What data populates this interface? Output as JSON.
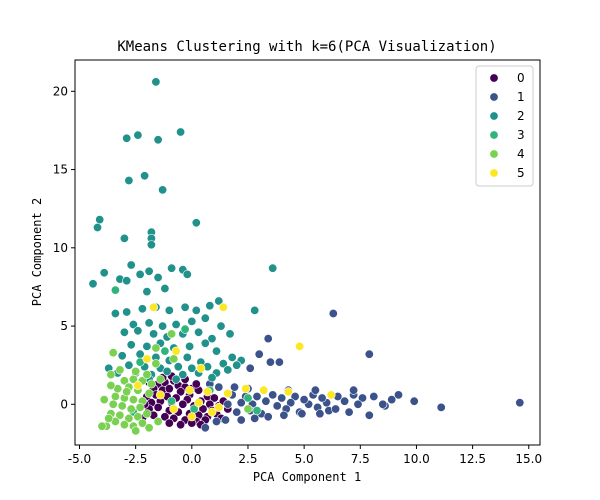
{
  "chart_data": {
    "type": "scatter",
    "title": "KMeans Clustering with k=6(PCA Visualization)",
    "xlabel": "PCA Component 1",
    "ylabel": "PCA Component 2",
    "xlim": [
      -5.2,
      15.5
    ],
    "ylim": [
      -2.6,
      22.0
    ],
    "xticks": [
      -5.0,
      -2.5,
      0.0,
      2.5,
      5.0,
      7.5,
      10.0,
      12.5,
      15.0
    ],
    "xtick_labels": [
      "-5.0",
      "-2.5",
      "0.0",
      "2.5",
      "5.0",
      "7.5",
      "10.0",
      "12.5",
      "15.0"
    ],
    "yticks": [
      0,
      5,
      10,
      15,
      20
    ],
    "ytick_labels": [
      "0",
      "5",
      "10",
      "15",
      "20"
    ],
    "grid": false,
    "legend_position": "top-right",
    "series": [
      {
        "name": "0",
        "color": "#440154",
        "points": [
          [
            -1.9,
            1.4
          ],
          [
            -1.5,
            1.3
          ],
          [
            -1.2,
            1.4
          ],
          [
            -0.8,
            1.5
          ],
          [
            -0.6,
            1.2
          ],
          [
            -0.3,
            1.1
          ],
          [
            0.0,
            1.0
          ],
          [
            -1.7,
            1.0
          ],
          [
            -1.3,
            0.9
          ],
          [
            -1.0,
            1.0
          ],
          [
            -0.5,
            0.8
          ],
          [
            -0.1,
            0.6
          ],
          [
            0.3,
            0.9
          ],
          [
            0.7,
            0.5
          ],
          [
            1.0,
            0.4
          ],
          [
            -2.0,
            0.5
          ],
          [
            -1.6,
            0.6
          ],
          [
            -1.1,
            0.5
          ],
          [
            -0.7,
            0.4
          ],
          [
            -0.2,
            0.3
          ],
          [
            0.4,
            0.2
          ],
          [
            0.8,
            0.0
          ],
          [
            1.2,
            -0.1
          ],
          [
            -1.8,
            0.1
          ],
          [
            -1.4,
            0.2
          ],
          [
            -0.9,
            0.1
          ],
          [
            -0.4,
            0.0
          ],
          [
            0.1,
            -0.1
          ],
          [
            0.5,
            -0.3
          ],
          [
            0.9,
            -0.4
          ],
          [
            -1.9,
            -0.3
          ],
          [
            -1.5,
            -0.2
          ],
          [
            -1.0,
            -0.4
          ],
          [
            -0.6,
            -0.5
          ],
          [
            -0.1,
            -0.6
          ],
          [
            0.3,
            -0.7
          ],
          [
            0.7,
            -0.8
          ],
          [
            1.1,
            -0.6
          ],
          [
            -1.7,
            -0.7
          ],
          [
            -1.2,
            -0.8
          ],
          [
            -0.8,
            -0.9
          ],
          [
            -0.3,
            -1.0
          ],
          [
            0.2,
            -1.1
          ],
          [
            0.6,
            -1.0
          ],
          [
            -1.5,
            -1.1
          ],
          [
            -1.0,
            -1.2
          ],
          [
            -0.5,
            -1.3
          ],
          [
            0.0,
            -1.2
          ],
          [
            0.4,
            -1.3
          ],
          [
            -2.2,
            -0.9
          ],
          [
            -2.1,
            0.0
          ],
          [
            1.4,
            0.2
          ],
          [
            1.6,
            -0.3
          ],
          [
            1.3,
            -0.9
          ],
          [
            -0.9,
            1.8
          ],
          [
            -0.3,
            1.6
          ],
          [
            0.2,
            1.3
          ],
          [
            -1.3,
            1.7
          ]
        ]
      },
      {
        "name": "1",
        "color": "#3b528b",
        "points": [
          [
            14.6,
            0.1
          ],
          [
            11.1,
            -0.2
          ],
          [
            9.9,
            0.2
          ],
          [
            9.2,
            0.6
          ],
          [
            8.9,
            0.3
          ],
          [
            8.6,
            -0.1
          ],
          [
            8.5,
            0.0
          ],
          [
            8.1,
            0.5
          ],
          [
            7.9,
            3.2
          ],
          [
            7.9,
            -0.7
          ],
          [
            7.6,
            0.4
          ],
          [
            7.4,
            0.0
          ],
          [
            7.2,
            0.6
          ],
          [
            7.0,
            -0.5
          ],
          [
            6.8,
            0.2
          ],
          [
            6.5,
            0.5
          ],
          [
            6.3,
            5.8
          ],
          [
            6.1,
            -0.4
          ],
          [
            6.0,
            0.1
          ],
          [
            5.8,
            0.4
          ],
          [
            5.6,
            -0.2
          ],
          [
            5.4,
            0.6
          ],
          [
            5.2,
            0.0
          ],
          [
            5.0,
            0.3
          ],
          [
            4.8,
            -0.5
          ],
          [
            4.6,
            0.5
          ],
          [
            4.4,
            0.1
          ],
          [
            4.2,
            -0.3
          ],
          [
            4.0,
            0.4
          ],
          [
            3.8,
            -0.1
          ],
          [
            3.6,
            0.6
          ],
          [
            3.5,
            2.7
          ],
          [
            3.4,
            4.2
          ],
          [
            3.3,
            0.2
          ],
          [
            3.1,
            -0.6
          ],
          [
            3.0,
            3.2
          ],
          [
            2.9,
            0.5
          ],
          [
            2.7,
            0.0
          ],
          [
            2.6,
            -0.4
          ],
          [
            2.4,
            0.5
          ],
          [
            2.2,
            0.1
          ],
          [
            2.0,
            -0.5
          ],
          [
            1.8,
            0.6
          ],
          [
            1.6,
            0.0
          ],
          [
            1.5,
            -1.0
          ],
          [
            2.2,
            -1.0
          ],
          [
            2.8,
            -0.9
          ],
          [
            3.4,
            -0.8
          ],
          [
            4.1,
            -0.7
          ],
          [
            4.9,
            -0.6
          ],
          [
            5.7,
            -0.6
          ],
          [
            6.4,
            -0.3
          ],
          [
            7.2,
            0.9
          ],
          [
            5.5,
            0.9
          ],
          [
            4.3,
            0.9
          ],
          [
            3.2,
            0.9
          ],
          [
            2.5,
            1.0
          ],
          [
            1.9,
            1.1
          ],
          [
            1.2,
            1.1
          ],
          [
            0.8,
            1.3
          ],
          [
            3.9,
            2.7
          ],
          [
            2.6,
            2.3
          ],
          [
            1.1,
            -1.1
          ],
          [
            0.6,
            -1.5
          ]
        ]
      },
      {
        "name": "2",
        "color": "#21918c",
        "points": [
          [
            -1.6,
            20.6
          ],
          [
            -2.9,
            17.0
          ],
          [
            -2.4,
            17.2
          ],
          [
            -1.5,
            16.9
          ],
          [
            -0.5,
            17.4
          ],
          [
            -2.1,
            14.6
          ],
          [
            -2.8,
            14.3
          ],
          [
            -1.3,
            13.7
          ],
          [
            -4.1,
            11.8
          ],
          [
            -4.2,
            11.3
          ],
          [
            -1.8,
            11.0
          ],
          [
            -1.8,
            10.6
          ],
          [
            -1.8,
            10.2
          ],
          [
            -3.0,
            10.6
          ],
          [
            0.2,
            11.6
          ],
          [
            -4.4,
            7.7
          ],
          [
            -3.9,
            8.4
          ],
          [
            -3.2,
            8.0
          ],
          [
            -2.7,
            8.9
          ],
          [
            -2.3,
            8.3
          ],
          [
            -1.9,
            8.5
          ],
          [
            -1.5,
            8.1
          ],
          [
            -0.9,
            8.7
          ],
          [
            -0.4,
            8.6
          ],
          [
            -0.2,
            8.3
          ],
          [
            -2.9,
            7.9
          ],
          [
            -2.0,
            7.2
          ],
          [
            -1.2,
            7.4
          ],
          [
            3.6,
            8.7
          ],
          [
            -3.4,
            5.8
          ],
          [
            -2.9,
            5.9
          ],
          [
            -2.2,
            6.1
          ],
          [
            -1.6,
            6.2
          ],
          [
            -1.0,
            6.0
          ],
          [
            -0.3,
            6.2
          ],
          [
            0.2,
            6.0
          ],
          [
            0.8,
            6.3
          ],
          [
            1.2,
            6.6
          ],
          [
            2.8,
            6.0
          ],
          [
            -2.6,
            5.1
          ],
          [
            -1.9,
            5.2
          ],
          [
            -1.3,
            5.0
          ],
          [
            -0.7,
            5.1
          ],
          [
            0.0,
            5.3
          ],
          [
            0.6,
            5.5
          ],
          [
            1.3,
            5.0
          ],
          [
            -3.0,
            4.6
          ],
          [
            -2.4,
            4.7
          ],
          [
            -1.7,
            4.5
          ],
          [
            -1.1,
            4.3
          ],
          [
            -0.4,
            4.5
          ],
          [
            0.3,
            4.6
          ],
          [
            0.9,
            4.2
          ],
          [
            1.7,
            4.5
          ],
          [
            -2.7,
            3.8
          ],
          [
            -2.0,
            3.7
          ],
          [
            -1.4,
            3.9
          ],
          [
            -0.8,
            3.6
          ],
          [
            -0.1,
            3.7
          ],
          [
            0.6,
            3.9
          ],
          [
            1.1,
            3.4
          ],
          [
            1.8,
            3.0
          ],
          [
            2.2,
            2.8
          ],
          [
            -3.1,
            3.1
          ],
          [
            -2.3,
            3.2
          ],
          [
            -1.6,
            3.0
          ],
          [
            -1.0,
            2.8
          ],
          [
            -0.2,
            3.0
          ],
          [
            0.4,
            2.7
          ],
          [
            1.4,
            2.6
          ],
          [
            -2.8,
            2.5
          ],
          [
            -2.1,
            2.4
          ],
          [
            -1.4,
            2.3
          ],
          [
            -0.6,
            2.4
          ],
          [
            0.0,
            2.3
          ],
          [
            0.7,
            2.4
          ],
          [
            1.6,
            2.2
          ],
          [
            -3.3,
            2.0
          ],
          [
            -2.5,
            2.0
          ],
          [
            -1.8,
            1.9
          ],
          [
            -1.1,
            2.1
          ],
          [
            -0.4,
            1.9
          ],
          [
            0.3,
            2.0
          ],
          [
            1.1,
            2.0
          ],
          [
            2.0,
            2.5
          ],
          [
            -3.7,
            2.3
          ],
          [
            -1.9,
            1.6
          ],
          [
            -0.7,
            1.6
          ],
          [
            0.9,
            1.7
          ]
        ]
      },
      {
        "name": "3",
        "color": "#2fb47c",
        "points": [
          [
            -3.4,
            7.3
          ],
          [
            -0.3,
            4.8
          ],
          [
            -1.2,
            3.4
          ],
          [
            -2.3,
            2.7
          ],
          [
            0.8,
            0.9
          ],
          [
            2.5,
            0.4
          ],
          [
            2.9,
            -0.4
          ],
          [
            -0.9,
            0.2
          ],
          [
            0.1,
            -0.3
          ],
          [
            -2.6,
            -0.5
          ]
        ]
      },
      {
        "name": "4",
        "color": "#7ad151",
        "points": [
          [
            -3.5,
            3.3
          ],
          [
            -3.2,
            2.2
          ],
          [
            -3.6,
            1.9
          ],
          [
            -3.0,
            1.5
          ],
          [
            -2.6,
            1.6
          ],
          [
            -2.2,
            1.5
          ],
          [
            -1.8,
            1.3
          ],
          [
            -1.4,
            1.6
          ],
          [
            -3.3,
            1.0
          ],
          [
            -2.8,
            1.1
          ],
          [
            -2.4,
            0.9
          ],
          [
            -1.9,
            0.7
          ],
          [
            -3.4,
            0.5
          ],
          [
            -3.0,
            0.4
          ],
          [
            -2.6,
            0.3
          ],
          [
            -2.2,
            0.2
          ],
          [
            -3.5,
            0.0
          ],
          [
            -3.1,
            -0.1
          ],
          [
            -2.7,
            -0.3
          ],
          [
            -2.3,
            -0.2
          ],
          [
            -3.6,
            -0.6
          ],
          [
            -3.2,
            -0.7
          ],
          [
            -2.8,
            -0.9
          ],
          [
            -2.4,
            -0.8
          ],
          [
            -2.0,
            -0.6
          ],
          [
            -3.4,
            -1.1
          ],
          [
            -3.0,
            -1.3
          ],
          [
            -2.6,
            -1.4
          ],
          [
            -2.2,
            -1.2
          ],
          [
            -3.8,
            -1.4
          ],
          [
            -4.0,
            -1.4
          ],
          [
            -3.7,
            -0.9
          ],
          [
            -2.5,
            -1.7
          ],
          [
            -1.9,
            -1.5
          ],
          [
            -1.5,
            -1.1
          ],
          [
            -2.9,
            0.8
          ],
          [
            -3.6,
            1.2
          ],
          [
            -3.9,
            0.3
          ],
          [
            -2.0,
            1.9
          ],
          [
            -2.5,
            2.1
          ],
          [
            -1.6,
            2.6
          ],
          [
            -0.8,
            2.9
          ],
          [
            2.5,
            -0.3
          ],
          [
            -0.9,
            4.5
          ],
          [
            -1.6,
            3.6
          ]
        ]
      },
      {
        "name": "5",
        "color": "#fde725",
        "points": [
          [
            -1.7,
            6.2
          ],
          [
            4.8,
            3.7
          ],
          [
            1.4,
            6.2
          ],
          [
            -0.7,
            3.4
          ],
          [
            0.4,
            2.3
          ],
          [
            -2.0,
            2.9
          ],
          [
            -0.8,
            -0.3
          ],
          [
            0.7,
            0.8
          ],
          [
            -0.1,
            0.9
          ],
          [
            0.3,
            0.1
          ],
          [
            2.4,
            1.0
          ],
          [
            3.2,
            0.9
          ],
          [
            4.3,
            0.8
          ],
          [
            6.2,
            0.6
          ],
          [
            1.2,
            -0.2
          ],
          [
            -1.4,
            0.6
          ],
          [
            0.9,
            -0.5
          ],
          [
            -2.4,
            1.2
          ],
          [
            1.6,
            0.7
          ],
          [
            0.0,
            -0.8
          ]
        ]
      }
    ]
  }
}
